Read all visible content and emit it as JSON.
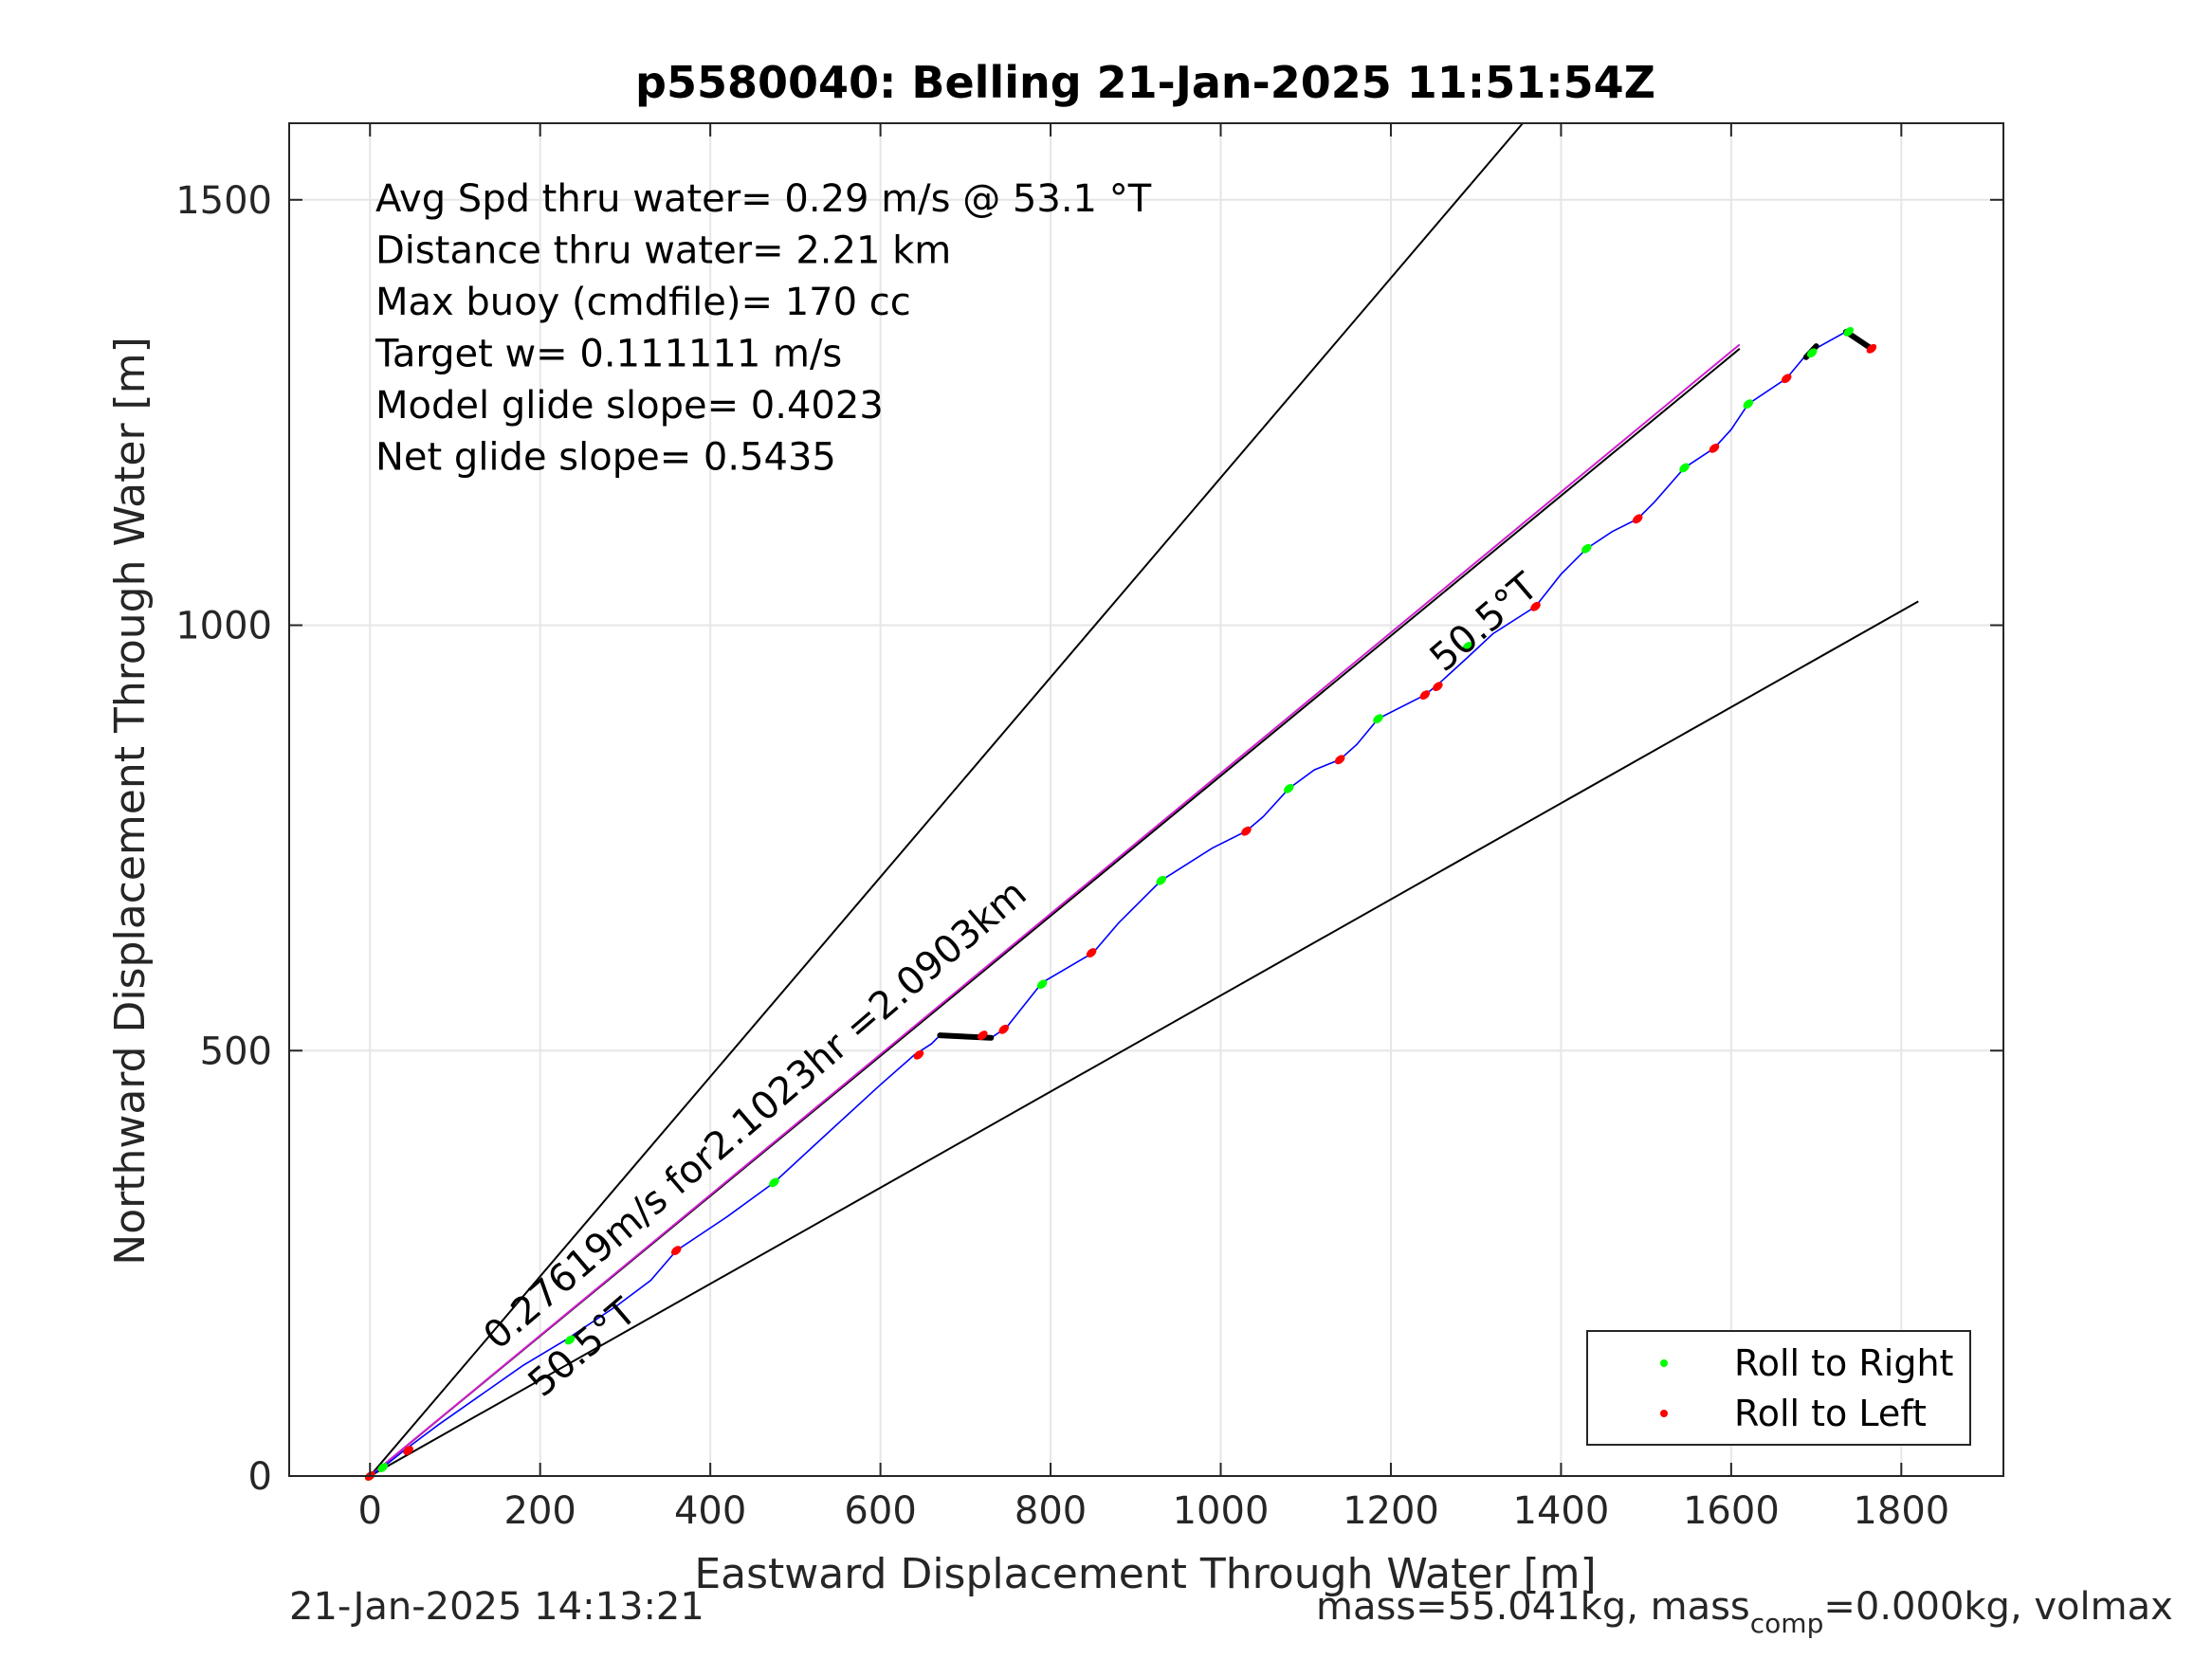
{
  "chart_data": {
    "type": "line",
    "title": "p5580040: Belling 21-Jan-2025 11:51:54Z",
    "xlabel": "Eastward Displacement Through Water [m]",
    "ylabel": "Northward Displacement Through Water [m]",
    "xlim": [
      -95,
      1920
    ],
    "ylim": [
      0,
      1590
    ],
    "xticks": [
      0,
      200,
      400,
      600,
      800,
      1000,
      1200,
      1400,
      1600,
      1800
    ],
    "xtick_labels": [
      "0",
      "200",
      "400",
      "600",
      "800",
      "1000",
      "1200",
      "1400",
      "1600",
      "1800"
    ],
    "yticks": [
      0,
      500,
      1000,
      1500
    ],
    "ytick_labels": [
      "0",
      "500",
      "1000",
      "1500"
    ],
    "grid": true,
    "annotations": [
      "Avg Spd thru water=  0.29 m/s @  53.1 °T",
      "Distance thru water=  2.21 km",
      "Max buoy (cmdfile)= 170 cc",
      "Target w= 0.111111 m/s",
      "Model glide slope= 0.4023",
      "Net glide slope= 0.5435"
    ],
    "line_labels": {
      "net_speed": "0.27619m/s for2.1023hr =2.0903km",
      "heading_lower": "50.5°T",
      "heading_upper": "50.5°T"
    },
    "reference_lines": [
      {
        "name": "upper-bound",
        "color": "#000000",
        "x": [
          0,
          1355
        ],
        "y": [
          0,
          1590
        ]
      },
      {
        "name": "center-line",
        "color": "#000000",
        "x": [
          0,
          1610
        ],
        "y": [
          0,
          1325
        ]
      },
      {
        "name": "lower-bound",
        "color": "#000000",
        "x": [
          0,
          1820
        ],
        "y": [
          0,
          1028
        ]
      },
      {
        "name": "heading-line",
        "color": "#d020d0",
        "x": [
          0,
          1610
        ],
        "y": [
          0,
          1330
        ]
      }
    ],
    "track": {
      "color": "#0000ff",
      "x": [
        0,
        15,
        40,
        80,
        130,
        180,
        230,
        290,
        330,
        360,
        420,
        475,
        540,
        600,
        640,
        660,
        670,
        700,
        730,
        748,
        790,
        850,
        880,
        930,
        990,
        1030,
        1050,
        1080,
        1110,
        1140,
        1160,
        1185,
        1240,
        1255,
        1290,
        1320,
        1370,
        1400,
        1430,
        1460,
        1490,
        1510,
        1545,
        1580,
        1600,
        1620,
        1665,
        1690,
        1735,
        1765
      ],
      "y": [
        0,
        10,
        30,
        60,
        95,
        130,
        160,
        200,
        230,
        265,
        305,
        345,
        405,
        460,
        495,
        508,
        518,
        515,
        515,
        527,
        580,
        615,
        650,
        700,
        738,
        758,
        775,
        808,
        830,
        842,
        860,
        890,
        918,
        930,
        962,
        990,
        1022,
        1060,
        1090,
        1110,
        1125,
        1145,
        1185,
        1208,
        1230,
        1260,
        1290,
        1320,
        1345,
        1325
      ]
    },
    "dive_segments": [
      {
        "x": [
          670,
          730
        ],
        "y": [
          518,
          515
        ]
      },
      {
        "x": [
          1688,
          1700
        ],
        "y": [
          1315,
          1328
        ]
      },
      {
        "x": [
          1735,
          1765
        ],
        "y": [
          1345,
          1325
        ]
      }
    ],
    "series": [
      {
        "name": "Roll to Right",
        "color": "#00ff00",
        "x": [
          0,
          15,
          235,
          475,
          790,
          930,
          1080,
          1185,
          1290,
          1430,
          1545,
          1620,
          1695,
          1738
        ],
        "y": [
          0,
          10,
          160,
          345,
          578,
          700,
          808,
          890,
          975,
          1090,
          1185,
          1260,
          1320,
          1345
        ]
      },
      {
        "name": "Roll to Left",
        "color": "#ff0000",
        "x": [
          0,
          45,
          360,
          645,
          720,
          745,
          848,
          1030,
          1140,
          1240,
          1255,
          1370,
          1490,
          1580,
          1665,
          1765
        ],
        "y": [
          0,
          30,
          265,
          495,
          518,
          525,
          615,
          758,
          842,
          918,
          928,
          1022,
          1125,
          1208,
          1290,
          1325
        ]
      }
    ],
    "legend_placement": "bottom-right"
  },
  "footer": {
    "timestamp": "21-Jan-2025 14:13:21",
    "mass_prefix": "mass=55.041kg, mass",
    "mass_sub": "comp",
    "mass_suffix": "=0.000kg, volmax"
  }
}
